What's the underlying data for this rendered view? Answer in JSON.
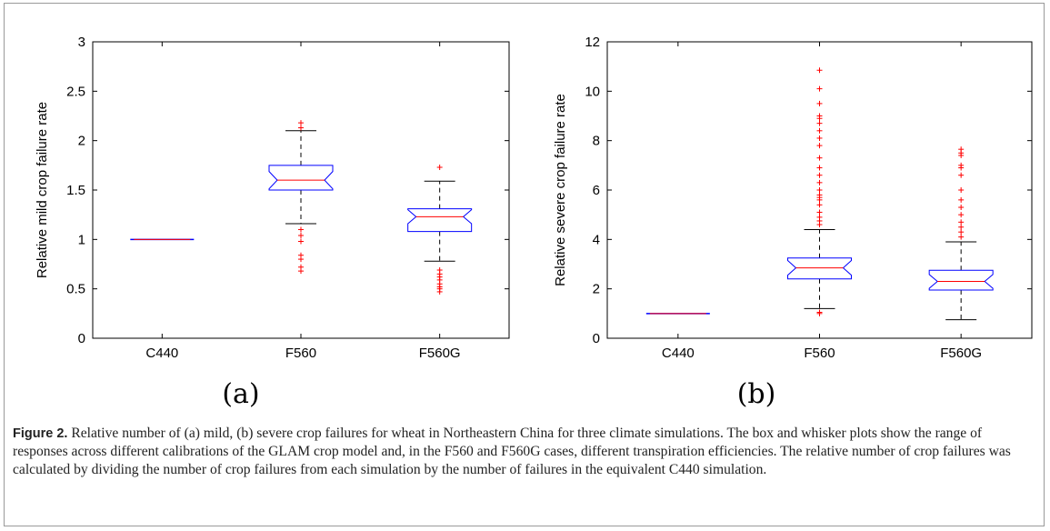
{
  "chart_data": [
    {
      "type": "box",
      "panel_label": "(a)",
      "ylabel": "Relative mild crop failure rate",
      "ylim": [
        0,
        3
      ],
      "yticks": [
        "0",
        "0.5",
        "1",
        "1.5",
        "2",
        "2.5",
        "3"
      ],
      "categories": [
        "C440",
        "F560",
        "F560G"
      ],
      "boxes": [
        {
          "q1": 1.0,
          "median": 1.0,
          "q3": 1.0,
          "whisker_low": 1.0,
          "whisker_high": 1.0,
          "outliers": []
        },
        {
          "q1": 1.5,
          "median": 1.6,
          "q3": 1.75,
          "whisker_low": 1.16,
          "whisker_high": 2.1,
          "outliers": [
            2.13,
            2.18,
            1.1,
            1.04,
            0.98,
            0.84,
            0.8,
            0.72,
            0.68
          ]
        },
        {
          "q1": 1.08,
          "median": 1.23,
          "q3": 1.31,
          "whisker_low": 0.78,
          "whisker_high": 1.59,
          "outliers": [
            1.73,
            0.69,
            0.65,
            0.62,
            0.59,
            0.55,
            0.52,
            0.5,
            0.47
          ]
        }
      ]
    },
    {
      "type": "box",
      "panel_label": "(b)",
      "ylabel": "Relative severe crop failure rate",
      "ylim": [
        0,
        12
      ],
      "yticks": [
        "0",
        "2",
        "4",
        "6",
        "8",
        "10",
        "12"
      ],
      "categories": [
        "C440",
        "F560",
        "F560G"
      ],
      "boxes": [
        {
          "q1": 1.0,
          "median": 1.0,
          "q3": 1.0,
          "whisker_low": 1.0,
          "whisker_high": 1.0,
          "outliers": []
        },
        {
          "q1": 2.4,
          "median": 2.85,
          "q3": 3.25,
          "whisker_low": 1.2,
          "whisker_high": 4.4,
          "outliers": [
            10.85,
            10.1,
            9.5,
            9.0,
            8.9,
            8.7,
            8.4,
            8.1,
            7.8,
            7.3,
            6.9,
            6.6,
            6.3,
            6.0,
            5.8,
            5.7,
            5.6,
            5.4,
            5.1,
            4.9,
            4.75,
            4.6,
            1.05,
            1.0
          ]
        },
        {
          "q1": 1.95,
          "median": 2.3,
          "q3": 2.75,
          "whisker_low": 0.75,
          "whisker_high": 3.9,
          "outliers": [
            7.65,
            7.5,
            7.4,
            7.0,
            6.9,
            6.6,
            6.0,
            5.6,
            5.3,
            5.0,
            4.7,
            4.5,
            4.3,
            4.1
          ]
        }
      ]
    }
  ],
  "colors": {
    "box": "#0000ff",
    "median": "#ff0000",
    "outlier": "#ff0000",
    "whisker": "#000000"
  },
  "caption": {
    "label": "Figure 2.",
    "text": "Relative number of (a) mild, (b) severe crop failures for wheat in Northeastern China for three climate simulations. The box and whisker plots show the range of responses across different calibrations of the GLAM crop model and, in the F560 and F560G cases, different transpiration efficiencies. The relative number of crop failures was calculated by dividing the number of crop failures from each simulation by the number of failures in the equivalent C440 simulation."
  }
}
